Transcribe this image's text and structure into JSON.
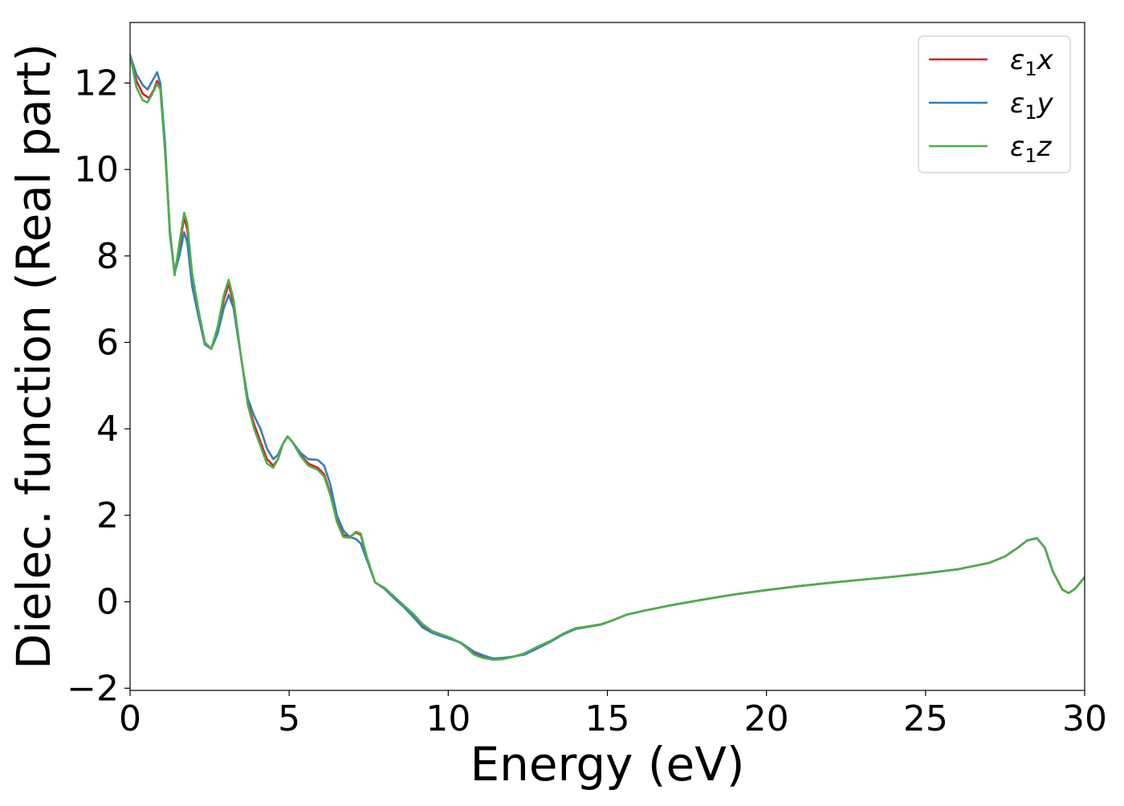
{
  "chart_data": {
    "type": "line",
    "title": "",
    "xlabel": "Energy (eV)",
    "ylabel": "Dielec. function (Real part)",
    "xlim": [
      0,
      30
    ],
    "ylim": [
      -2.05,
      13.4
    ],
    "xticks": [
      0,
      5,
      10,
      15,
      20,
      25,
      30
    ],
    "yticks": [
      -2,
      0,
      2,
      4,
      6,
      8,
      10,
      12
    ],
    "grid": false,
    "legend": {
      "position": "top-right"
    },
    "series": [
      {
        "name": "ε1x",
        "legend_base": "ε",
        "legend_sub": "1",
        "legend_suffix": "x",
        "color": "#e41a1c",
        "points": [
          [
            0,
            12.65
          ],
          [
            0.2,
            12.05
          ],
          [
            0.4,
            11.75
          ],
          [
            0.6,
            11.65
          ],
          [
            0.75,
            11.85
          ],
          [
            0.85,
            12.05
          ],
          [
            0.95,
            11.9
          ],
          [
            1.1,
            10.5
          ],
          [
            1.25,
            8.6
          ],
          [
            1.4,
            7.6
          ],
          [
            1.55,
            8.2
          ],
          [
            1.7,
            8.9
          ],
          [
            1.8,
            8.6
          ],
          [
            1.95,
            7.5
          ],
          [
            2.15,
            6.7
          ],
          [
            2.35,
            6.0
          ],
          [
            2.55,
            5.85
          ],
          [
            2.75,
            6.3
          ],
          [
            2.95,
            7.0
          ],
          [
            3.1,
            7.35
          ],
          [
            3.25,
            6.9
          ],
          [
            3.5,
            5.6
          ],
          [
            3.7,
            4.6
          ],
          [
            3.9,
            4.1
          ],
          [
            4.1,
            3.7
          ],
          [
            4.3,
            3.3
          ],
          [
            4.5,
            3.15
          ],
          [
            4.65,
            3.3
          ],
          [
            4.8,
            3.65
          ],
          [
            4.95,
            3.82
          ],
          [
            5.1,
            3.7
          ],
          [
            5.35,
            3.4
          ],
          [
            5.6,
            3.2
          ],
          [
            5.9,
            3.1
          ],
          [
            6.1,
            2.95
          ],
          [
            6.3,
            2.5
          ],
          [
            6.5,
            1.9
          ],
          [
            6.7,
            1.55
          ],
          [
            6.9,
            1.5
          ],
          [
            7.1,
            1.6
          ],
          [
            7.25,
            1.55
          ],
          [
            7.45,
            1.0
          ],
          [
            7.7,
            0.45
          ],
          [
            8.0,
            0.3
          ],
          [
            8.3,
            0.1
          ],
          [
            8.6,
            -0.1
          ],
          [
            8.9,
            -0.3
          ],
          [
            9.2,
            -0.55
          ],
          [
            9.5,
            -0.7
          ],
          [
            9.8,
            -0.78
          ],
          [
            10.1,
            -0.85
          ],
          [
            10.4,
            -0.95
          ],
          [
            10.6,
            -1.05
          ],
          [
            10.8,
            -1.2
          ],
          [
            11.1,
            -1.28
          ],
          [
            11.4,
            -1.33
          ],
          [
            11.7,
            -1.32
          ],
          [
            12.0,
            -1.28
          ],
          [
            12.4,
            -1.2
          ],
          [
            12.8,
            -1.05
          ],
          [
            13.2,
            -0.92
          ],
          [
            13.6,
            -0.75
          ],
          [
            14.0,
            -0.62
          ],
          [
            14.4,
            -0.57
          ],
          [
            14.8,
            -0.52
          ],
          [
            15.2,
            -0.42
          ],
          [
            15.6,
            -0.3
          ],
          [
            16.2,
            -0.2
          ],
          [
            17.0,
            -0.08
          ],
          [
            18.0,
            0.05
          ],
          [
            19.0,
            0.17
          ],
          [
            20.0,
            0.27
          ],
          [
            21.0,
            0.36
          ],
          [
            22.0,
            0.44
          ],
          [
            23.0,
            0.51
          ],
          [
            24.0,
            0.58
          ],
          [
            25.0,
            0.66
          ],
          [
            26.0,
            0.75
          ],
          [
            27.0,
            0.9
          ],
          [
            27.5,
            1.05
          ],
          [
            27.9,
            1.25
          ],
          [
            28.2,
            1.42
          ],
          [
            28.5,
            1.47
          ],
          [
            28.75,
            1.25
          ],
          [
            29.0,
            0.7
          ],
          [
            29.3,
            0.28
          ],
          [
            29.5,
            0.2
          ],
          [
            29.7,
            0.3
          ],
          [
            30.0,
            0.57
          ]
        ]
      },
      {
        "name": "ε1y",
        "legend_base": "ε",
        "legend_sub": "1",
        "legend_suffix": "y",
        "color": "#377eb8",
        "points": [
          [
            0,
            12.65
          ],
          [
            0.2,
            12.2
          ],
          [
            0.4,
            11.95
          ],
          [
            0.55,
            11.85
          ],
          [
            0.7,
            12.05
          ],
          [
            0.85,
            12.25
          ],
          [
            0.95,
            12.0
          ],
          [
            1.1,
            10.6
          ],
          [
            1.25,
            8.5
          ],
          [
            1.4,
            7.6
          ],
          [
            1.55,
            8.0
          ],
          [
            1.7,
            8.55
          ],
          [
            1.8,
            8.3
          ],
          [
            1.95,
            7.3
          ],
          [
            2.15,
            6.6
          ],
          [
            2.35,
            5.95
          ],
          [
            2.55,
            5.85
          ],
          [
            2.75,
            6.2
          ],
          [
            2.95,
            6.8
          ],
          [
            3.1,
            7.1
          ],
          [
            3.25,
            6.8
          ],
          [
            3.5,
            5.6
          ],
          [
            3.7,
            4.7
          ],
          [
            3.9,
            4.3
          ],
          [
            4.1,
            4.0
          ],
          [
            4.3,
            3.55
          ],
          [
            4.5,
            3.3
          ],
          [
            4.65,
            3.4
          ],
          [
            4.8,
            3.65
          ],
          [
            4.95,
            3.82
          ],
          [
            5.1,
            3.7
          ],
          [
            5.35,
            3.45
          ],
          [
            5.6,
            3.3
          ],
          [
            5.9,
            3.28
          ],
          [
            6.1,
            3.15
          ],
          [
            6.3,
            2.7
          ],
          [
            6.5,
            2.0
          ],
          [
            6.7,
            1.65
          ],
          [
            6.9,
            1.5
          ],
          [
            7.1,
            1.45
          ],
          [
            7.25,
            1.35
          ],
          [
            7.45,
            0.95
          ],
          [
            7.7,
            0.45
          ],
          [
            8.0,
            0.3
          ],
          [
            8.3,
            0.08
          ],
          [
            8.6,
            -0.12
          ],
          [
            8.9,
            -0.35
          ],
          [
            9.2,
            -0.6
          ],
          [
            9.5,
            -0.72
          ],
          [
            9.8,
            -0.8
          ],
          [
            10.1,
            -0.87
          ],
          [
            10.4,
            -0.95
          ],
          [
            10.6,
            -1.05
          ],
          [
            10.8,
            -1.15
          ],
          [
            11.1,
            -1.24
          ],
          [
            11.4,
            -1.31
          ],
          [
            11.7,
            -1.3
          ],
          [
            12.0,
            -1.27
          ],
          [
            12.4,
            -1.22
          ],
          [
            12.8,
            -1.08
          ],
          [
            13.2,
            -0.93
          ],
          [
            13.6,
            -0.76
          ],
          [
            14.0,
            -0.63
          ],
          [
            14.4,
            -0.58
          ],
          [
            14.8,
            -0.53
          ],
          [
            15.2,
            -0.42
          ],
          [
            15.6,
            -0.3
          ],
          [
            16.2,
            -0.2
          ],
          [
            17.0,
            -0.08
          ],
          [
            18.0,
            0.05
          ],
          [
            19.0,
            0.17
          ],
          [
            20.0,
            0.27
          ],
          [
            21.0,
            0.36
          ],
          [
            22.0,
            0.44
          ],
          [
            23.0,
            0.51
          ],
          [
            24.0,
            0.58
          ],
          [
            25.0,
            0.66
          ],
          [
            26.0,
            0.75
          ],
          [
            27.0,
            0.9
          ],
          [
            27.5,
            1.05
          ],
          [
            27.9,
            1.25
          ],
          [
            28.2,
            1.42
          ],
          [
            28.5,
            1.47
          ],
          [
            28.75,
            1.25
          ],
          [
            29.0,
            0.7
          ],
          [
            29.3,
            0.28
          ],
          [
            29.5,
            0.2
          ],
          [
            29.7,
            0.3
          ],
          [
            30.0,
            0.57
          ]
        ]
      },
      {
        "name": "ε1z",
        "legend_base": "ε",
        "legend_sub": "1",
        "legend_suffix": "z",
        "color": "#4daf4a",
        "points": [
          [
            0,
            12.65
          ],
          [
            0.2,
            11.9
          ],
          [
            0.4,
            11.6
          ],
          [
            0.55,
            11.55
          ],
          [
            0.7,
            11.75
          ],
          [
            0.85,
            11.98
          ],
          [
            0.95,
            11.85
          ],
          [
            1.1,
            10.4
          ],
          [
            1.25,
            8.6
          ],
          [
            1.4,
            7.55
          ],
          [
            1.55,
            8.3
          ],
          [
            1.7,
            9.0
          ],
          [
            1.8,
            8.75
          ],
          [
            1.95,
            7.6
          ],
          [
            2.15,
            6.75
          ],
          [
            2.35,
            6.0
          ],
          [
            2.55,
            5.85
          ],
          [
            2.75,
            6.35
          ],
          [
            2.95,
            7.1
          ],
          [
            3.1,
            7.45
          ],
          [
            3.25,
            7.0
          ],
          [
            3.5,
            5.6
          ],
          [
            3.7,
            4.55
          ],
          [
            3.9,
            4.0
          ],
          [
            4.1,
            3.6
          ],
          [
            4.3,
            3.2
          ],
          [
            4.5,
            3.1
          ],
          [
            4.65,
            3.3
          ],
          [
            4.8,
            3.65
          ],
          [
            4.95,
            3.83
          ],
          [
            5.1,
            3.7
          ],
          [
            5.35,
            3.38
          ],
          [
            5.6,
            3.15
          ],
          [
            5.9,
            3.05
          ],
          [
            6.1,
            2.9
          ],
          [
            6.3,
            2.45
          ],
          [
            6.5,
            1.85
          ],
          [
            6.7,
            1.5
          ],
          [
            6.9,
            1.48
          ],
          [
            7.1,
            1.62
          ],
          [
            7.25,
            1.58
          ],
          [
            7.45,
            1.02
          ],
          [
            7.7,
            0.45
          ],
          [
            8.0,
            0.32
          ],
          [
            8.3,
            0.12
          ],
          [
            8.6,
            -0.08
          ],
          [
            8.9,
            -0.28
          ],
          [
            9.2,
            -0.52
          ],
          [
            9.5,
            -0.68
          ],
          [
            9.8,
            -0.76
          ],
          [
            10.1,
            -0.84
          ],
          [
            10.4,
            -0.96
          ],
          [
            10.6,
            -1.08
          ],
          [
            10.8,
            -1.22
          ],
          [
            11.1,
            -1.3
          ],
          [
            11.4,
            -1.34
          ],
          [
            11.7,
            -1.33
          ],
          [
            12.0,
            -1.28
          ],
          [
            12.4,
            -1.19
          ],
          [
            12.8,
            -1.04
          ],
          [
            13.2,
            -0.91
          ],
          [
            13.6,
            -0.74
          ],
          [
            14.0,
            -0.61
          ],
          [
            14.4,
            -0.57
          ],
          [
            14.8,
            -0.52
          ],
          [
            15.2,
            -0.42
          ],
          [
            15.6,
            -0.3
          ],
          [
            16.2,
            -0.2
          ],
          [
            17.0,
            -0.08
          ],
          [
            18.0,
            0.05
          ],
          [
            19.0,
            0.17
          ],
          [
            20.0,
            0.27
          ],
          [
            21.0,
            0.36
          ],
          [
            22.0,
            0.44
          ],
          [
            23.0,
            0.51
          ],
          [
            24.0,
            0.58
          ],
          [
            25.0,
            0.66
          ],
          [
            26.0,
            0.75
          ],
          [
            27.0,
            0.9
          ],
          [
            27.5,
            1.05
          ],
          [
            27.9,
            1.25
          ],
          [
            28.2,
            1.42
          ],
          [
            28.5,
            1.47
          ],
          [
            28.75,
            1.25
          ],
          [
            29.0,
            0.7
          ],
          [
            29.3,
            0.28
          ],
          [
            29.5,
            0.2
          ],
          [
            29.7,
            0.3
          ],
          [
            30.0,
            0.57
          ]
        ]
      }
    ]
  }
}
